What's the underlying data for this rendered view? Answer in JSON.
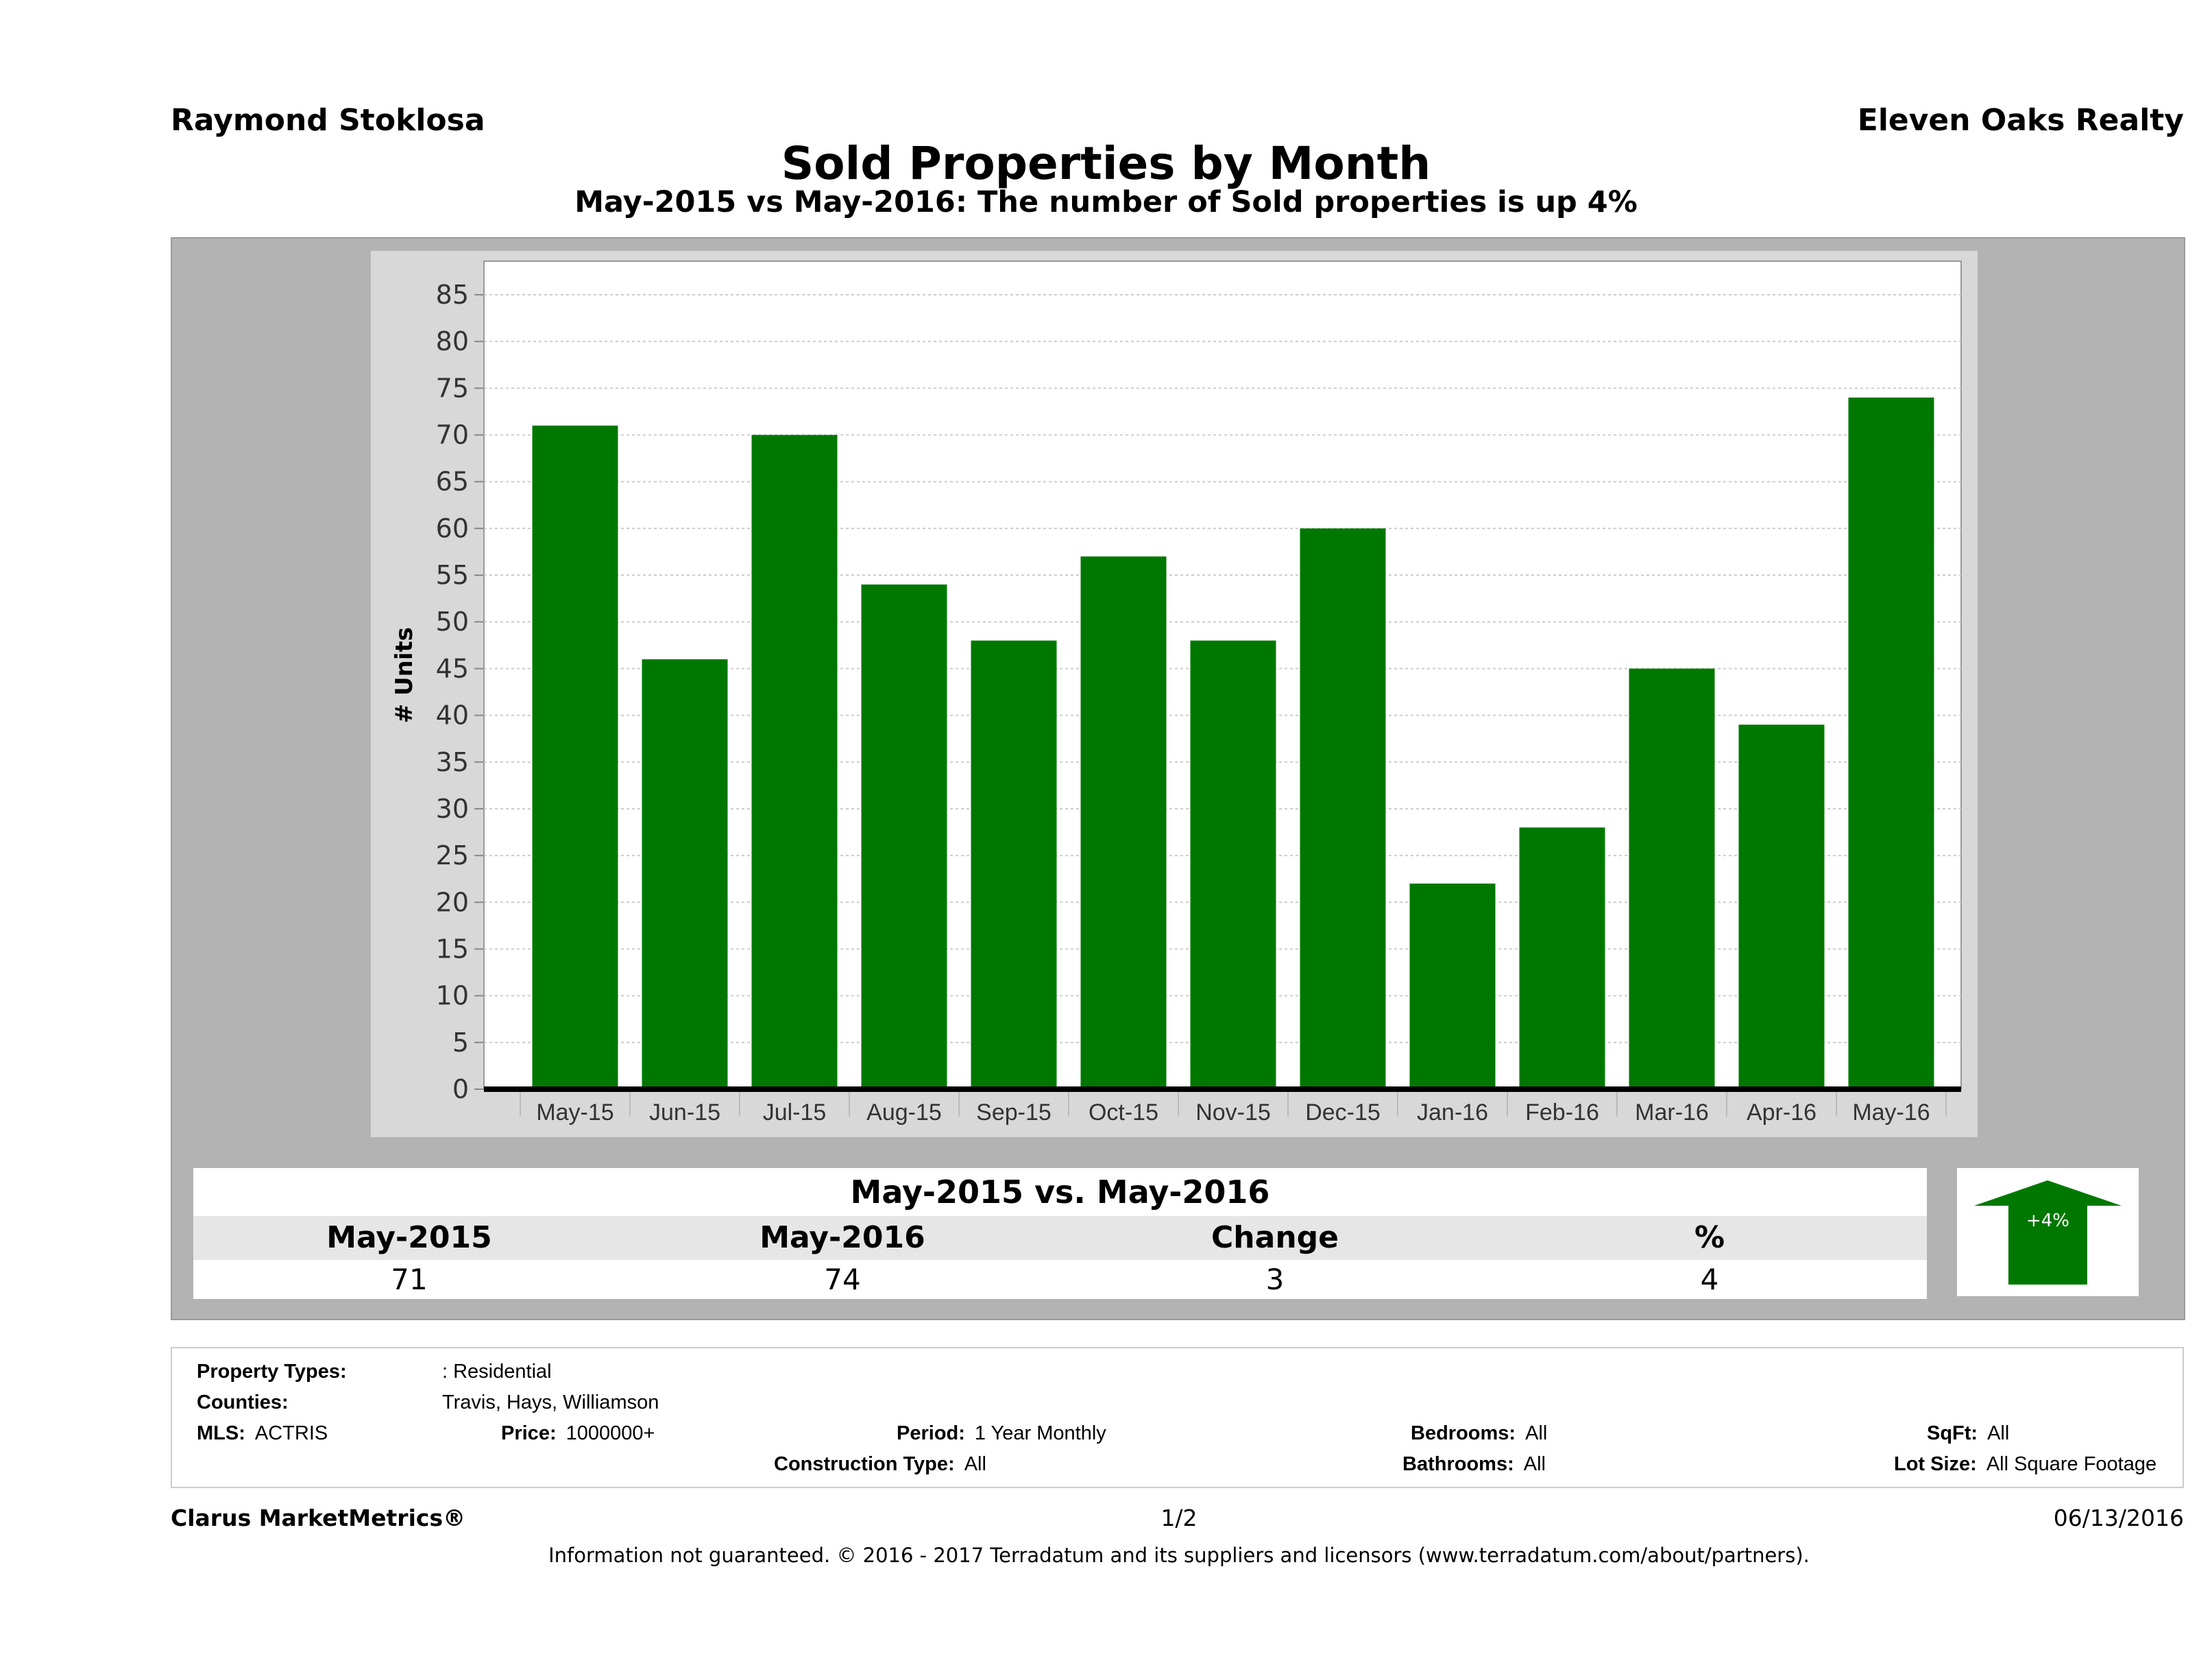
{
  "header": {
    "agent": "Raymond Stoklosa",
    "brokerage": "Eleven Oaks Realty",
    "title": "Sold Properties by Month",
    "subtitle": "May-2015 vs May-2016: The number of Sold  properties is up 4%"
  },
  "chart_data": {
    "type": "bar",
    "ylabel": "# Units",
    "categories": [
      "May-15",
      "Jun-15",
      "Jul-15",
      "Aug-15",
      "Sep-15",
      "Oct-15",
      "Nov-15",
      "Dec-15",
      "Jan-16",
      "Feb-16",
      "Mar-16",
      "Apr-16",
      "May-16"
    ],
    "values": [
      71,
      46,
      70,
      54,
      48,
      57,
      48,
      60,
      22,
      28,
      45,
      39,
      74
    ],
    "ylim": [
      0,
      85
    ],
    "yticks": [
      0,
      5,
      10,
      15,
      20,
      25,
      30,
      35,
      40,
      45,
      50,
      55,
      60,
      65,
      70,
      75,
      80,
      85
    ],
    "grid": true,
    "bar_color": "#007800"
  },
  "summary": {
    "title": "May-2015 vs. May-2016",
    "headers": [
      "May-2015",
      "May-2016",
      "Change",
      "%"
    ],
    "values": [
      "71",
      "74",
      "3",
      "4"
    ],
    "badge": "+4%",
    "badge_icon": "up-arrow-icon",
    "badge_color": "#007800"
  },
  "info": {
    "property_types_label": "Property Types:",
    "property_types": ": Residential",
    "counties_label": "Counties:",
    "counties": "Travis, Hays, Williamson",
    "mls_label": "MLS:",
    "mls": "ACTRIS",
    "price_label": "Price:",
    "price": "1000000+",
    "period_label": "Period:",
    "period": "1 Year Monthly",
    "bedrooms_label": "Bedrooms:",
    "bedrooms": "All",
    "sqft_label": "SqFt:",
    "sqft": "All",
    "construction_label": "Construction Type:",
    "construction": "All",
    "bathrooms_label": "Bathrooms:",
    "bathrooms": "All",
    "lot_label": "Lot Size:",
    "lot": "All Square Footage"
  },
  "footer": {
    "brand": "Clarus MarketMetrics®",
    "page": "1/2",
    "date": "06/13/2016",
    "disclaimer": "Information not guaranteed. © 2016 - 2017 Terradatum and its suppliers and licensors (www.terradatum.com/about/partners)."
  }
}
